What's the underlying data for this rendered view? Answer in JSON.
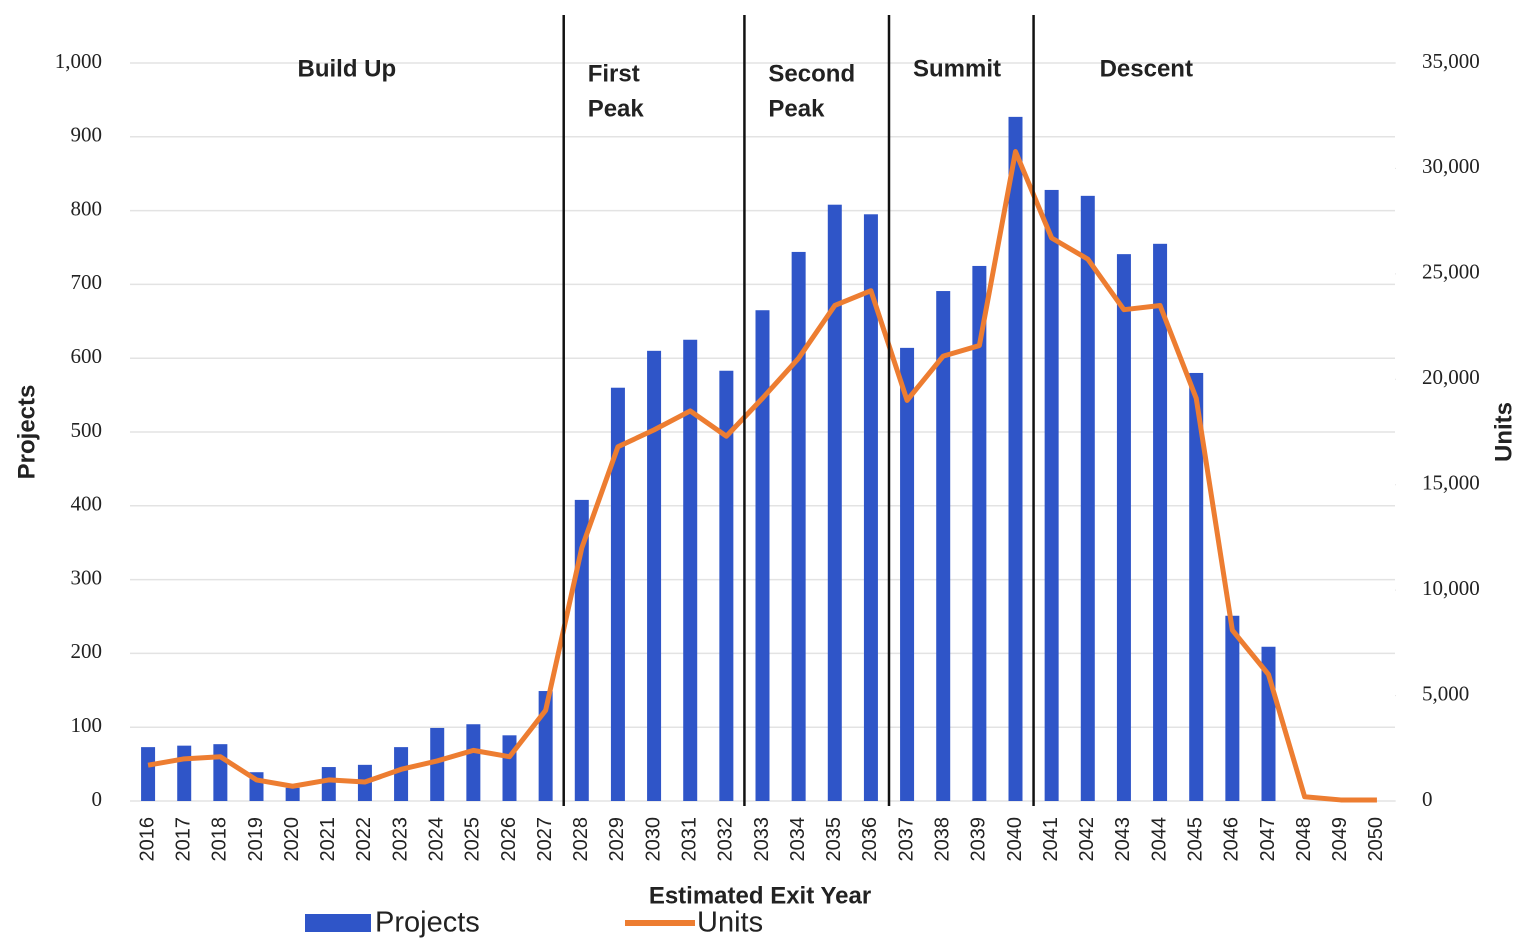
{
  "chart_data": {
    "type": "bar_line",
    "x_label": "Estimated Exit Year",
    "y_label": "Projects",
    "y2_label": "Units",
    "categories": [
      "2016",
      "2017",
      "2018",
      "2019",
      "2020",
      "2021",
      "2022",
      "2023",
      "2024",
      "2025",
      "2026",
      "2027",
      "2028",
      "2029",
      "2030",
      "2031",
      "2032",
      "2033",
      "2034",
      "2035",
      "2036",
      "2037",
      "2038",
      "2039",
      "2040",
      "2041",
      "2042",
      "2043",
      "2044",
      "2045",
      "2046",
      "2047",
      "2048",
      "2049",
      "2050"
    ],
    "series": [
      {
        "name": "Projects",
        "type": "bar",
        "color": "#2f55c8",
        "values": [
          73,
          75,
          77,
          39,
          18,
          46,
          49,
          73,
          99,
          104,
          89,
          149,
          408,
          560,
          610,
          625,
          583,
          665,
          744,
          808,
          795,
          614,
          691,
          725,
          927,
          828,
          820,
          741,
          755,
          580,
          251,
          209,
          0,
          0,
          0
        ]
      },
      {
        "name": "Units",
        "type": "line",
        "axis": "y2",
        "color": "#ed7d31",
        "values": [
          1700,
          2000,
          2100,
          1000,
          700,
          1000,
          900,
          1500,
          1900,
          2400,
          2100,
          4300,
          12000,
          16800,
          17600,
          18500,
          17300,
          19100,
          21000,
          23500,
          24200,
          19000,
          21100,
          21600,
          30800,
          26700,
          25700,
          23300,
          23500,
          19100,
          8100,
          6000,
          200,
          50,
          50
        ]
      }
    ],
    "ylim": [
      0,
      1000
    ],
    "yticks": [
      0,
      100,
      200,
      300,
      400,
      500,
      600,
      700,
      800,
      900,
      {
        "value": 1000,
        "label": "1,000"
      }
    ],
    "y2lim": [
      0,
      35000
    ],
    "y2ticks": [
      0,
      {
        "value": 5000,
        "label": "5,000"
      },
      {
        "value": 10000,
        "label": "10,000"
      },
      {
        "value": 15000,
        "label": "15,000"
      },
      {
        "value": 20000,
        "label": "20,000"
      },
      {
        "value": 25000,
        "label": "25,000"
      },
      {
        "value": 30000,
        "label": "30,000"
      },
      {
        "value": 35000,
        "label": "35,000"
      }
    ],
    "grid": true,
    "legend": "bottom",
    "phases": [
      {
        "lines": [
          "Build Up"
        ],
        "start": "2016",
        "end": "2027"
      },
      {
        "lines": [
          "First",
          "Peak"
        ],
        "start": "2028",
        "end": "2032"
      },
      {
        "lines": [
          "Second",
          "Peak"
        ],
        "start": "2033",
        "end": "2036"
      },
      {
        "lines": [
          "Summit"
        ],
        "start": "2037",
        "end": "2040"
      },
      {
        "lines": [
          "Descent"
        ],
        "start": "2041",
        "end": "2050"
      }
    ]
  }
}
